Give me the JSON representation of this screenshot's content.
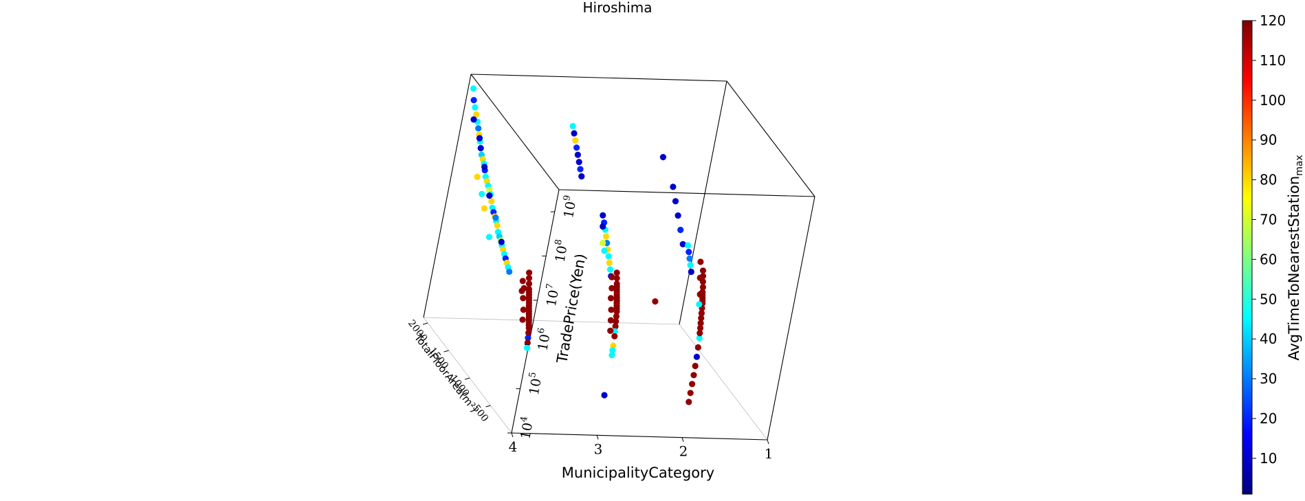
{
  "chart_data": {
    "type": "scatter",
    "projection": "3d",
    "title": "Hiroshima",
    "xlabel": "MunicipalityCategory",
    "ylabel": "TotalFloorArea(m²)",
    "zlabel": "TradePrice(Yen)",
    "z_scale": "log",
    "x_ticks": [
      "4",
      "3",
      "2",
      "1"
    ],
    "y_ticks": [
      "500",
      "1000",
      "1500",
      "2000"
    ],
    "z_ticks": [
      {
        "base": "10",
        "exp": "4"
      },
      {
        "base": "10",
        "exp": "5"
      },
      {
        "base": "10",
        "exp": "6"
      },
      {
        "base": "10",
        "exp": "7"
      },
      {
        "base": "10",
        "exp": "8"
      },
      {
        "base": "10",
        "exp": "9"
      }
    ],
    "colorbar": {
      "label": "AvgTimeToNearestStation",
      "label_subscript": "max",
      "colormap": "jet",
      "range": [
        1,
        120
      ],
      "ticks": [
        "10",
        "20",
        "30",
        "40",
        "50",
        "60",
        "70",
        "80",
        "90",
        "100",
        "110",
        "120"
      ]
    },
    "xlim": [
      1,
      4
    ],
    "ylim": [
      0,
      2100
    ],
    "zlim": [
      4,
      9.5
    ],
    "grid": false,
    "points": [
      [
        4,
        2000,
        9.3,
        45
      ],
      [
        4,
        1950,
        9.1,
        20
      ],
      [
        4,
        1900,
        9.0,
        45
      ],
      [
        4,
        1850,
        8.9,
        80
      ],
      [
        4,
        1800,
        8.8,
        45
      ],
      [
        4,
        1760,
        8.7,
        30
      ],
      [
        4,
        1720,
        8.6,
        80
      ],
      [
        4,
        1680,
        8.5,
        45
      ],
      [
        4,
        1640,
        8.4,
        10
      ],
      [
        4,
        1600,
        8.3,
        40
      ],
      [
        4,
        1560,
        8.25,
        80
      ],
      [
        4,
        1520,
        8.2,
        45
      ],
      [
        4,
        1480,
        8.1,
        20
      ],
      [
        4,
        1440,
        8.0,
        45
      ],
      [
        4,
        1400,
        7.95,
        80
      ],
      [
        4,
        1360,
        7.9,
        45
      ],
      [
        4,
        1320,
        7.85,
        70
      ],
      [
        4,
        1280,
        7.8,
        45
      ],
      [
        4,
        1240,
        7.7,
        80
      ],
      [
        4,
        1200,
        7.6,
        45
      ],
      [
        4,
        1160,
        7.55,
        20
      ],
      [
        4,
        1120,
        7.5,
        80
      ],
      [
        4,
        1080,
        7.45,
        45
      ],
      [
        4,
        1040,
        7.4,
        80
      ],
      [
        4,
        1000,
        7.3,
        45
      ],
      [
        4,
        960,
        7.25,
        40
      ],
      [
        4,
        920,
        7.2,
        70
      ],
      [
        4,
        880,
        7.15,
        45
      ],
      [
        4,
        840,
        7.1,
        80
      ],
      [
        4,
        800,
        7.05,
        45
      ],
      [
        4,
        760,
        7.0,
        20
      ],
      [
        4,
        720,
        6.95,
        80
      ],
      [
        4,
        680,
        6.9,
        45
      ],
      [
        4,
        640,
        6.85,
        30
      ],
      [
        4,
        1700,
        8.55,
        10
      ],
      [
        4,
        1500,
        8.15,
        10
      ],
      [
        4,
        1300,
        7.75,
        10
      ],
      [
        4,
        1100,
        7.5,
        30
      ],
      [
        4,
        900,
        7.2,
        10
      ],
      [
        4,
        1880,
        8.75,
        10
      ],
      [
        4,
        1600,
        7.8,
        80
      ],
      [
        4,
        1450,
        7.6,
        45
      ],
      [
        4,
        1350,
        7.4,
        80
      ],
      [
        4,
        1150,
        7.0,
        45
      ],
      [
        4,
        260,
        7.3,
        118
      ],
      [
        4,
        240,
        7.2,
        118
      ],
      [
        4,
        220,
        7.1,
        118
      ],
      [
        4,
        200,
        7.0,
        118
      ],
      [
        4,
        190,
        6.95,
        118
      ],
      [
        4,
        180,
        6.9,
        118
      ],
      [
        4,
        170,
        6.85,
        118
      ],
      [
        4,
        160,
        6.8,
        118
      ],
      [
        4,
        150,
        6.75,
        118
      ],
      [
        4,
        140,
        6.7,
        118
      ],
      [
        4,
        130,
        6.65,
        118
      ],
      [
        4,
        120,
        6.6,
        118
      ],
      [
        4,
        110,
        6.55,
        118
      ],
      [
        4,
        100,
        6.5,
        118
      ],
      [
        4,
        90,
        6.45,
        118
      ],
      [
        4,
        80,
        6.4,
        118
      ],
      [
        4,
        70,
        6.35,
        118
      ],
      [
        4,
        60,
        6.3,
        118
      ],
      [
        4,
        50,
        6.2,
        118
      ],
      [
        4,
        40,
        6.1,
        20
      ],
      [
        4,
        30,
        6.0,
        118
      ],
      [
        4,
        20,
        5.9,
        45
      ],
      [
        4,
        300,
        6.9,
        118
      ],
      [
        4,
        280,
        6.7,
        118
      ],
      [
        4,
        230,
        6.5,
        118
      ],
      [
        4,
        210,
        6.3,
        118
      ],
      [
        4,
        350,
        7.0,
        118
      ],
      [
        4,
        330,
        6.8,
        118
      ],
      [
        3,
        1600,
        9.0,
        45
      ],
      [
        3,
        1550,
        8.9,
        10
      ],
      [
        3,
        1500,
        8.8,
        80
      ],
      [
        3,
        1450,
        8.7,
        20
      ],
      [
        3,
        1400,
        8.6,
        10
      ],
      [
        3,
        1350,
        8.5,
        10
      ],
      [
        3,
        1300,
        8.4,
        20
      ],
      [
        3,
        1250,
        8.3,
        10
      ],
      [
        3,
        700,
        8.1,
        10
      ],
      [
        3,
        650,
        8.0,
        20
      ],
      [
        3,
        600,
        7.9,
        45
      ],
      [
        3,
        560,
        7.8,
        80
      ],
      [
        3,
        520,
        7.7,
        30
      ],
      [
        3,
        480,
        7.6,
        80
      ],
      [
        3,
        440,
        7.5,
        45
      ],
      [
        3,
        400,
        7.4,
        80
      ],
      [
        3,
        360,
        7.3,
        45
      ],
      [
        3,
        320,
        7.2,
        20
      ],
      [
        3,
        660,
        7.9,
        10
      ],
      [
        3,
        600,
        7.6,
        70
      ],
      [
        3,
        540,
        7.5,
        45
      ],
      [
        3,
        220,
        7.4,
        118
      ],
      [
        3,
        200,
        7.3,
        118
      ],
      [
        3,
        180,
        7.2,
        118
      ],
      [
        3,
        170,
        7.15,
        118
      ],
      [
        3,
        160,
        7.1,
        118
      ],
      [
        3,
        150,
        7.05,
        118
      ],
      [
        3,
        140,
        7.0,
        118
      ],
      [
        3,
        130,
        6.95,
        118
      ],
      [
        3,
        120,
        6.9,
        118
      ],
      [
        3,
        110,
        6.85,
        118
      ],
      [
        3,
        100,
        6.8,
        118
      ],
      [
        3,
        90,
        6.75,
        118
      ],
      [
        3,
        80,
        6.7,
        118
      ],
      [
        3,
        70,
        6.6,
        118
      ],
      [
        3,
        60,
        6.5,
        118
      ],
      [
        3,
        50,
        6.4,
        118
      ],
      [
        3,
        40,
        6.3,
        45
      ],
      [
        3,
        30,
        6.2,
        118
      ],
      [
        3,
        20,
        6.0,
        80
      ],
      [
        3,
        15,
        5.9,
        45
      ],
      [
        3,
        10,
        5.8,
        45
      ],
      [
        3,
        260,
        7.0,
        118
      ],
      [
        3,
        240,
        6.8,
        118
      ],
      [
        3,
        190,
        6.6,
        118
      ],
      [
        3,
        160,
        6.4,
        118
      ],
      [
        3,
        300,
        7.2,
        118
      ],
      [
        3,
        130,
        6.2,
        118
      ],
      [
        3,
        5,
        4.9,
        10
      ],
      [
        2.55,
        120,
        6.9,
        118
      ],
      [
        2,
        1400,
        8.6,
        10
      ],
      [
        2,
        1100,
        8.3,
        10
      ],
      [
        2,
        1000,
        8.1,
        10
      ],
      [
        2,
        900,
        7.9,
        10
      ],
      [
        2,
        800,
        7.7,
        20
      ],
      [
        2,
        700,
        7.5,
        10
      ],
      [
        2,
        600,
        7.6,
        45
      ],
      [
        2,
        560,
        7.5,
        20
      ],
      [
        2,
        520,
        7.4,
        30
      ],
      [
        2,
        480,
        7.3,
        45
      ],
      [
        2,
        440,
        7.2,
        10
      ],
      [
        2,
        220,
        7.5,
        118
      ],
      [
        2,
        200,
        7.4,
        118
      ],
      [
        2,
        180,
        7.3,
        118
      ],
      [
        2,
        160,
        7.2,
        118
      ],
      [
        2,
        150,
        7.1,
        118
      ],
      [
        2,
        140,
        7.05,
        118
      ],
      [
        2,
        130,
        7.0,
        118
      ],
      [
        2,
        120,
        6.95,
        118
      ],
      [
        2,
        110,
        6.9,
        118
      ],
      [
        2,
        100,
        6.8,
        118
      ],
      [
        2,
        90,
        6.7,
        118
      ],
      [
        2,
        80,
        6.6,
        118
      ],
      [
        2,
        60,
        6.4,
        118
      ],
      [
        2,
        40,
        6.2,
        45
      ],
      [
        2,
        30,
        6.0,
        118
      ],
      [
        2,
        20,
        5.8,
        10
      ],
      [
        2,
        15,
        5.6,
        118
      ],
      [
        2,
        10,
        5.4,
        118
      ],
      [
        2,
        8,
        5.2,
        118
      ],
      [
        2,
        6,
        5.0,
        118
      ],
      [
        2,
        4,
        4.8,
        118
      ],
      [
        2,
        300,
        7.6,
        118
      ],
      [
        2,
        250,
        7.3,
        118
      ],
      [
        2,
        190,
        7.0,
        118
      ],
      [
        2,
        170,
        6.8,
        45
      ],
      [
        2,
        70,
        6.5,
        118
      ],
      [
        2,
        50,
        6.3,
        118
      ]
    ]
  }
}
